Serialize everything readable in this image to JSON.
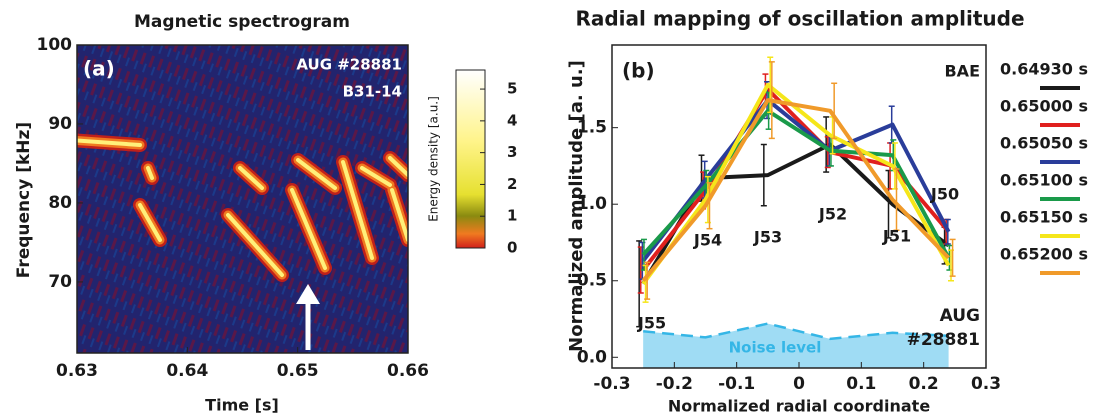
{
  "chart_data": [
    {
      "type": "spectrogram",
      "title": "Magnetic spectrogram",
      "xlabel": "Time [s]",
      "ylabel": "Frequency [kHz]",
      "xlim": [
        0.63,
        0.66
      ],
      "xticks": [
        0.63,
        0.64,
        0.65,
        0.66
      ],
      "ylim": [
        61,
        100
      ],
      "yticks": [
        70,
        80,
        90,
        100
      ],
      "annotations": [
        "(a)",
        "AUG #28881",
        "B31-14"
      ],
      "colorbar": {
        "label": "Energy density [a.u.]",
        "lim": [
          0,
          5.6
        ],
        "ticks": [
          0,
          1,
          2,
          3,
          4,
          5
        ]
      }
    },
    {
      "type": "line",
      "title": "Radial mapping of oscillation amplitude",
      "xlabel": "Normalized radial coordinate",
      "ylabel": "Normalized amplitude [a. u.]",
      "x": [
        -0.25,
        -0.15,
        -0.05,
        0.05,
        0.15,
        0.24
      ],
      "xlim": [
        -0.3,
        0.3
      ],
      "xticks": [
        -0.3,
        -0.2,
        -0.1,
        0,
        0.1,
        0.2,
        0.3
      ],
      "ylim": [
        -0.07,
        2.04
      ],
      "yticks": [
        {
          "value": 0,
          "label": "0.0"
        },
        0.5,
        {
          "value": 1,
          "label": "1.0"
        },
        1.5
      ],
      "series": [
        {
          "name": "0.64930 s",
          "color": "#1a1a1a",
          "values": [
            0.48,
            1.17,
            1.19,
            1.39,
            1.0,
            0.73
          ],
          "errors": [
            0.28,
            0.15,
            0.2,
            0.18,
            0.22,
            0.12
          ]
        },
        {
          "name": "0.65000 s",
          "color": "#e0201e",
          "values": [
            0.57,
            1.09,
            1.75,
            1.34,
            1.25,
            0.82
          ],
          "errors": [
            0.15,
            0.12,
            0.1,
            0.1,
            0.15,
            0.08
          ]
        },
        {
          "name": "0.65050 s",
          "color": "#2a3d9a",
          "values": [
            0.63,
            1.16,
            1.68,
            1.35,
            1.52,
            0.82
          ],
          "errors": [
            0.12,
            0.12,
            0.12,
            0.1,
            0.12,
            0.08
          ]
        },
        {
          "name": "0.65100 s",
          "color": "#1a9a4a",
          "values": [
            0.67,
            1.12,
            1.61,
            1.35,
            1.32,
            0.65
          ],
          "errors": [
            0.1,
            0.1,
            0.12,
            0.1,
            0.1,
            0.08
          ]
        },
        {
          "name": "0.65150 s",
          "color": "#f5e61a",
          "values": [
            0.48,
            1.03,
            1.78,
            1.45,
            1.25,
            0.6
          ],
          "errors": [
            0.12,
            0.15,
            0.18,
            0.12,
            0.15,
            0.1
          ]
        },
        {
          "name": "0.65200 s",
          "color": "#f09a2a",
          "values": [
            0.5,
            0.99,
            1.68,
            1.61,
            1.03,
            0.65
          ],
          "errors": [
            0.12,
            0.15,
            0.25,
            0.18,
            0.2,
            0.12
          ]
        }
      ],
      "noise": {
        "label": "Noise level",
        "color": "#35b6e6",
        "fill": "#9fdcf4",
        "values": [
          0.17,
          0.13,
          0.22,
          0.12,
          0.16,
          0.14
        ]
      },
      "annotations": [
        "(b)",
        "BAE",
        "AUG",
        "#28881",
        "J55",
        "J54",
        "J53",
        "J52",
        "J51",
        "J50"
      ]
    }
  ]
}
